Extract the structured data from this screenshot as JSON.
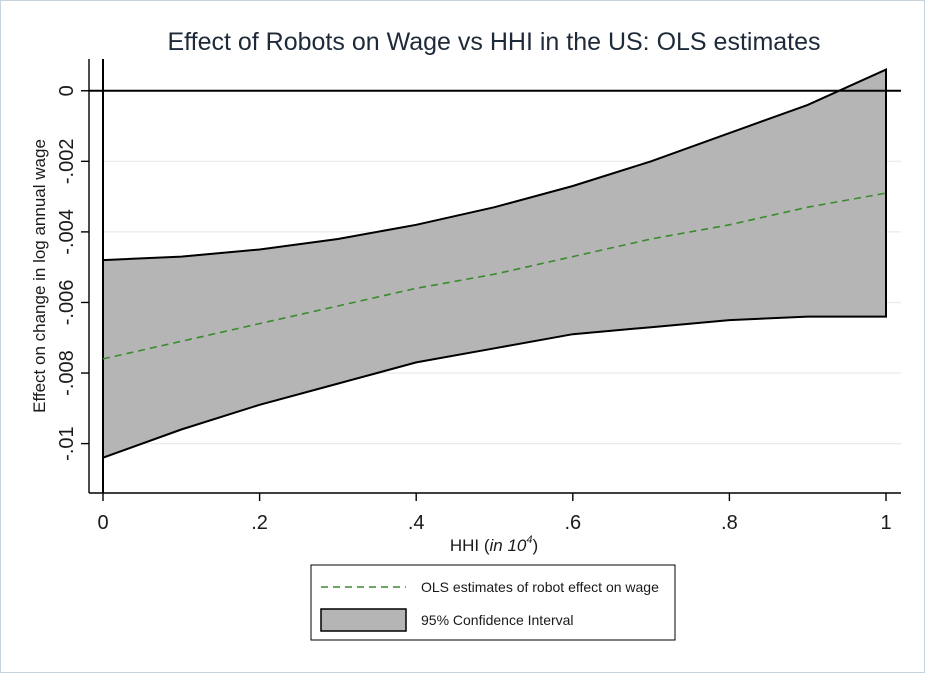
{
  "chart_data": {
    "type": "line",
    "title": "Effect of Robots on Wage vs HHI in the US: OLS estimates",
    "xlabel_prefix": "HHI (",
    "xlabel_italic": "in 10",
    "xlabel_sup": "4",
    "xlabel_suffix": ")",
    "ylabel": "Effect on change in log annual wage",
    "xlim": [
      0,
      1
    ],
    "ylim": [
      -0.0114,
      0.0009
    ],
    "x_ticks": [
      0,
      0.2,
      0.4,
      0.6,
      0.8,
      1
    ],
    "x_tick_labels": [
      "0",
      ".2",
      ".4",
      ".6",
      ".8",
      "1"
    ],
    "y_ticks": [
      0,
      -0.002,
      -0.004,
      -0.006,
      -0.008,
      -0.01
    ],
    "y_tick_labels": [
      "0",
      "-.002",
      "-.004",
      "-.006",
      "-.008",
      "-.01"
    ],
    "grid": true,
    "reference_line_y": 0,
    "x": [
      0,
      0.1,
      0.2,
      0.3,
      0.4,
      0.5,
      0.6,
      0.7,
      0.8,
      0.9,
      1.0
    ],
    "series": [
      {
        "name": "OLS estimates of robot effect on wage",
        "style": "dashed",
        "color": "#3a8a2e",
        "values": [
          -0.0076,
          -0.0071,
          -0.0066,
          -0.0061,
          -0.0056,
          -0.0052,
          -0.0047,
          -0.0042,
          -0.0038,
          -0.0033,
          -0.0029
        ]
      },
      {
        "name": "95% Confidence Interval",
        "style": "band",
        "color": "#b5b5b5",
        "lower": [
          -0.0104,
          -0.0096,
          -0.0089,
          -0.0083,
          -0.0077,
          -0.0073,
          -0.0069,
          -0.0067,
          -0.0065,
          -0.0064,
          -0.0064
        ],
        "upper": [
          -0.0048,
          -0.0047,
          -0.0045,
          -0.0042,
          -0.0038,
          -0.0033,
          -0.0027,
          -0.002,
          -0.0012,
          -0.0004,
          0.0006
        ]
      }
    ],
    "legend_position": "bottom-center"
  }
}
